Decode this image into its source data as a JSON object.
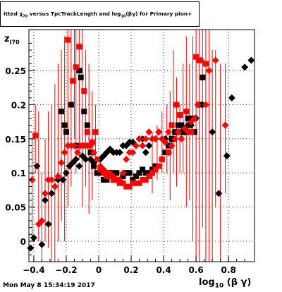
{
  "title": {
    "pre": "itted  χ",
    "sub1": "70",
    "mid": " versus TpcTrackLength and log",
    "sub2": "10",
    "post": "(βγ) for Primary pion+"
  },
  "footer": "Mon May  8 15:34:19 2017",
  "xlabel": {
    "main": "log",
    "sub": "10",
    "post": " (β γ)"
  },
  "ylabel": {
    "main": "z",
    "sub": "I70"
  },
  "chart_data": {
    "type": "scatter",
    "xlim": [
      -0.43,
      0.96
    ],
    "ylim": [
      -0.03,
      0.31
    ],
    "xticks": [
      -0.4,
      -0.2,
      0,
      0.2,
      0.4,
      0.6,
      0.8
    ],
    "xtick_labels": [
      "−0.4",
      "−0.2",
      "0",
      "0.2",
      "0.4",
      "0.6",
      "0.8"
    ],
    "yticks": [
      0,
      0.05,
      0.1,
      0.15,
      0.2,
      0.25
    ],
    "ytick_labels": [
      "0",
      "0.05",
      "0.1",
      "0.15",
      "0.2",
      "0.25"
    ],
    "grid": true,
    "series": [
      {
        "marker": "square",
        "color": "#000000",
        "points": [
          [
            -0.23,
            0.19
          ],
          [
            -0.21,
            0.17
          ],
          [
            -0.2,
            0.16
          ],
          [
            -0.17,
            0.2
          ],
          [
            -0.14,
            0.14
          ],
          [
            -0.12,
            0.25
          ],
          [
            -0.11,
            0.24
          ],
          [
            -0.09,
            0.19
          ],
          [
            -0.07,
            0.17
          ],
          [
            -0.05,
            0.13
          ],
          [
            -0.03,
            0.11
          ],
          [
            -0.01,
            0.1
          ],
          [
            0.01,
            0.1
          ],
          [
            0.03,
            0.09
          ],
          [
            0.05,
            0.09
          ],
          [
            0.07,
            0.1
          ],
          [
            0.09,
            0.1
          ],
          [
            0.11,
            0.1
          ],
          [
            0.13,
            0.09
          ],
          [
            0.15,
            0.095
          ],
          [
            0.17,
            0.1
          ],
          [
            0.19,
            0.1
          ],
          [
            0.21,
            0.09
          ],
          [
            0.23,
            0.095
          ],
          [
            0.25,
            0.1
          ],
          [
            0.27,
            0.105
          ],
          [
            0.29,
            0.1
          ],
          [
            0.31,
            0.1
          ],
          [
            0.33,
            0.105
          ],
          [
            0.35,
            0.11
          ],
          [
            0.37,
            0.11
          ],
          [
            0.39,
            0.12
          ],
          [
            0.41,
            0.13
          ],
          [
            0.43,
            0.14
          ],
          [
            0.45,
            0.15
          ],
          [
            0.47,
            0.16
          ],
          [
            0.49,
            0.17
          ],
          [
            0.51,
            0.17
          ],
          [
            0.53,
            0.16
          ],
          [
            0.55,
            0.18
          ],
          [
            0.57,
            0.18
          ],
          [
            0.59,
            0.16
          ],
          [
            0.62,
            0.2
          ],
          [
            0.64,
            0.24
          ]
        ]
      },
      {
        "marker": "diamond",
        "color": "#000000",
        "points": [
          [
            -0.42,
            -0.01
          ],
          [
            -0.4,
            0.005
          ],
          [
            -0.38,
            0.11
          ],
          [
            -0.35,
            -0.005
          ],
          [
            -0.33,
            0.06
          ],
          [
            -0.31,
            0.025
          ],
          [
            -0.29,
            0.07
          ],
          [
            -0.27,
            0.08
          ],
          [
            -0.25,
            0.09
          ],
          [
            -0.22,
            0.09
          ],
          [
            -0.2,
            0.1
          ],
          [
            -0.18,
            0.11
          ],
          [
            -0.16,
            0.115
          ],
          [
            -0.14,
            0.12
          ],
          [
            -0.12,
            0.11
          ],
          [
            -0.1,
            0.125
          ],
          [
            -0.08,
            0.12
          ],
          [
            -0.05,
            0.12
          ],
          [
            -0.03,
            0.115
          ],
          [
            -0.01,
            0.12
          ],
          [
            0.01,
            0.12
          ],
          [
            0.03,
            0.125
          ],
          [
            0.05,
            0.13
          ],
          [
            0.07,
            0.135
          ],
          [
            0.09,
            0.13
          ],
          [
            0.11,
            0.13
          ],
          [
            0.13,
            0.13
          ],
          [
            0.15,
            0.14
          ],
          [
            0.17,
            0.14
          ],
          [
            0.19,
            0.145
          ],
          [
            0.21,
            0.145
          ],
          [
            0.23,
            0.14
          ],
          [
            0.25,
            0.15
          ],
          [
            0.27,
            0.15
          ],
          [
            0.29,
            0.13
          ],
          [
            0.31,
            0.14
          ],
          [
            0.33,
            0.15
          ],
          [
            0.35,
            0.15
          ],
          [
            0.37,
            0.16
          ],
          [
            0.39,
            0.15
          ],
          [
            0.41,
            0.15
          ],
          [
            0.43,
            0.13
          ],
          [
            0.45,
            0.15
          ],
          [
            0.47,
            0.15
          ],
          [
            0.49,
            0.16
          ],
          [
            0.51,
            0.16
          ],
          [
            0.53,
            0.16
          ],
          [
            0.55,
            0.17
          ],
          [
            0.57,
            0.17
          ],
          [
            0.6,
            0.18
          ],
          [
            0.64,
            0.2
          ],
          [
            0.7,
            0.16
          ],
          [
            0.74,
            0.07
          ],
          [
            0.79,
            0.125
          ],
          [
            0.82,
            0.21
          ],
          [
            0.9,
            0.255
          ],
          [
            0.94,
            0.265
          ]
        ]
      },
      {
        "marker": "square",
        "color": "#ff0000",
        "points": [
          [
            -0.39,
            0.155
          ],
          [
            -0.19,
            0.295
          ],
          [
            -0.16,
            0.235
          ],
          [
            -0.14,
            0.255
          ],
          [
            -0.12,
            0.285
          ],
          [
            -0.09,
            0.22
          ],
          [
            -0.07,
            0.16
          ],
          [
            -0.04,
            0.145
          ],
          [
            -0.02,
            0.16
          ],
          [
            0.01,
            0.105
          ],
          [
            0.03,
            0.1
          ],
          [
            0.05,
            0.095
          ],
          [
            0.07,
            0.095
          ],
          [
            0.09,
            0.09
          ],
          [
            0.11,
            0.09
          ],
          [
            0.13,
            0.085
          ],
          [
            0.15,
            0.085
          ],
          [
            0.17,
            0.08
          ],
          [
            0.19,
            0.08
          ],
          [
            0.21,
            0.085
          ],
          [
            0.23,
            0.085
          ],
          [
            0.25,
            0.085
          ],
          [
            0.27,
            0.09
          ],
          [
            0.29,
            0.09
          ],
          [
            0.31,
            0.095
          ],
          [
            0.33,
            0.1
          ],
          [
            0.35,
            0.105
          ],
          [
            0.37,
            0.11
          ],
          [
            0.39,
            0.12
          ],
          [
            0.43,
            0.13
          ],
          [
            0.45,
            0.17
          ],
          [
            0.48,
            0.2
          ],
          [
            0.5,
            0.185
          ],
          [
            0.54,
            0.19
          ],
          [
            0.57,
            0.16
          ],
          [
            0.6,
            0.27
          ],
          [
            0.62,
            0.265
          ],
          [
            0.66,
            0.26
          ]
        ]
      },
      {
        "marker": "diamond",
        "color": "#ff0000",
        "points": [
          [
            -0.41,
            0.09
          ],
          [
            -0.37,
            0.025
          ],
          [
            -0.35,
            0.03
          ],
          [
            -0.33,
            0.07
          ],
          [
            -0.31,
            0.09
          ],
          [
            -0.29,
            0.09
          ],
          [
            -0.27,
            0.08
          ],
          [
            -0.25,
            0.095
          ],
          [
            -0.23,
            0.115
          ],
          [
            -0.21,
            0.13
          ],
          [
            -0.19,
            0.14
          ],
          [
            -0.17,
            0.14
          ],
          [
            -0.15,
            0.14
          ],
          [
            -0.13,
            0.13
          ],
          [
            -0.11,
            0.14
          ],
          [
            -0.09,
            0.14
          ],
          [
            -0.07,
            0.14
          ],
          [
            -0.05,
            0.14
          ],
          [
            -0.03,
            0.13
          ],
          [
            -0.01,
            0.12
          ],
          [
            0.01,
            0.11
          ],
          [
            0.03,
            0.105
          ],
          [
            0.05,
            0.1
          ],
          [
            0.07,
            0.1
          ],
          [
            0.09,
            0.095
          ],
          [
            0.11,
            0.09
          ],
          [
            0.13,
            0.09
          ],
          [
            0.15,
            0.1
          ],
          [
            0.17,
            0.12
          ],
          [
            0.19,
            0.13
          ],
          [
            0.21,
            0.13
          ],
          [
            0.23,
            0.14
          ],
          [
            0.25,
            0.15
          ],
          [
            0.27,
            0.14
          ],
          [
            0.29,
            0.15
          ],
          [
            0.31,
            0.16
          ],
          [
            0.33,
            0.15
          ],
          [
            0.35,
            0.15
          ],
          [
            0.37,
            0.16
          ],
          [
            0.39,
            0.15
          ],
          [
            0.41,
            0.145
          ],
          [
            0.43,
            0.16
          ],
          [
            0.45,
            0.14
          ],
          [
            0.47,
            0.15
          ],
          [
            0.49,
            0.16
          ],
          [
            0.51,
            0.15
          ],
          [
            0.53,
            0.165
          ],
          [
            0.55,
            0.16
          ],
          [
            0.57,
            0.175
          ],
          [
            0.59,
            0.18
          ],
          [
            0.61,
            0.2
          ],
          [
            0.63,
            0.265
          ],
          [
            0.66,
            0.2
          ],
          [
            0.68,
            0.25
          ],
          [
            0.72,
            0.265
          ],
          [
            0.78,
            0.17
          ]
        ]
      }
    ],
    "error_bars": {
      "color": "#ff0000",
      "bars": [
        [
          -0.41,
          0.0,
          0.15
        ],
        [
          -0.39,
          0.1,
          0.2
        ],
        [
          -0.37,
          0.0,
          0.19
        ],
        [
          -0.35,
          -0.03,
          0.1
        ],
        [
          -0.33,
          0.0,
          0.15
        ],
        [
          -0.31,
          -0.01,
          0.19
        ],
        [
          -0.29,
          -0.03,
          0.2
        ],
        [
          -0.27,
          -0.03,
          0.23
        ],
        [
          -0.25,
          0.0,
          0.26
        ],
        [
          -0.23,
          0.03,
          0.28
        ],
        [
          -0.21,
          0.0,
          0.3
        ],
        [
          -0.19,
          0.05,
          0.31
        ],
        [
          -0.17,
          0.08,
          0.31
        ],
        [
          -0.15,
          0.15,
          0.31
        ],
        [
          -0.14,
          0.1,
          0.31
        ],
        [
          -0.12,
          0.12,
          0.31
        ],
        [
          -0.1,
          0.05,
          0.31
        ],
        [
          -0.08,
          0.08,
          0.28
        ],
        [
          -0.06,
          0.04,
          0.26
        ],
        [
          -0.04,
          0.06,
          0.22
        ],
        [
          -0.02,
          0.1,
          0.2
        ],
        [
          0.33,
          0.07,
          0.16
        ],
        [
          0.36,
          0.09,
          0.17
        ],
        [
          0.39,
          0.1,
          0.19
        ],
        [
          0.42,
          0.1,
          0.2
        ],
        [
          0.44,
          0.06,
          0.22
        ],
        [
          0.46,
          0.1,
          0.28
        ],
        [
          0.48,
          0.08,
          0.24
        ],
        [
          0.5,
          0.1,
          0.2
        ],
        [
          0.52,
          0.1,
          0.26
        ],
        [
          0.54,
          0.05,
          0.3
        ],
        [
          0.56,
          0.06,
          0.26
        ],
        [
          0.58,
          0.0,
          0.3
        ],
        [
          0.6,
          -0.03,
          0.31
        ],
        [
          0.62,
          -0.03,
          0.31
        ],
        [
          0.64,
          0.02,
          0.31
        ],
        [
          0.66,
          -0.03,
          0.31
        ],
        [
          0.68,
          -0.03,
          0.31
        ],
        [
          0.7,
          -0.03,
          0.28
        ],
        [
          0.72,
          0.05,
          0.28
        ],
        [
          0.75,
          -0.03,
          0.26
        ],
        [
          0.78,
          0.07,
          0.26
        ]
      ]
    }
  }
}
